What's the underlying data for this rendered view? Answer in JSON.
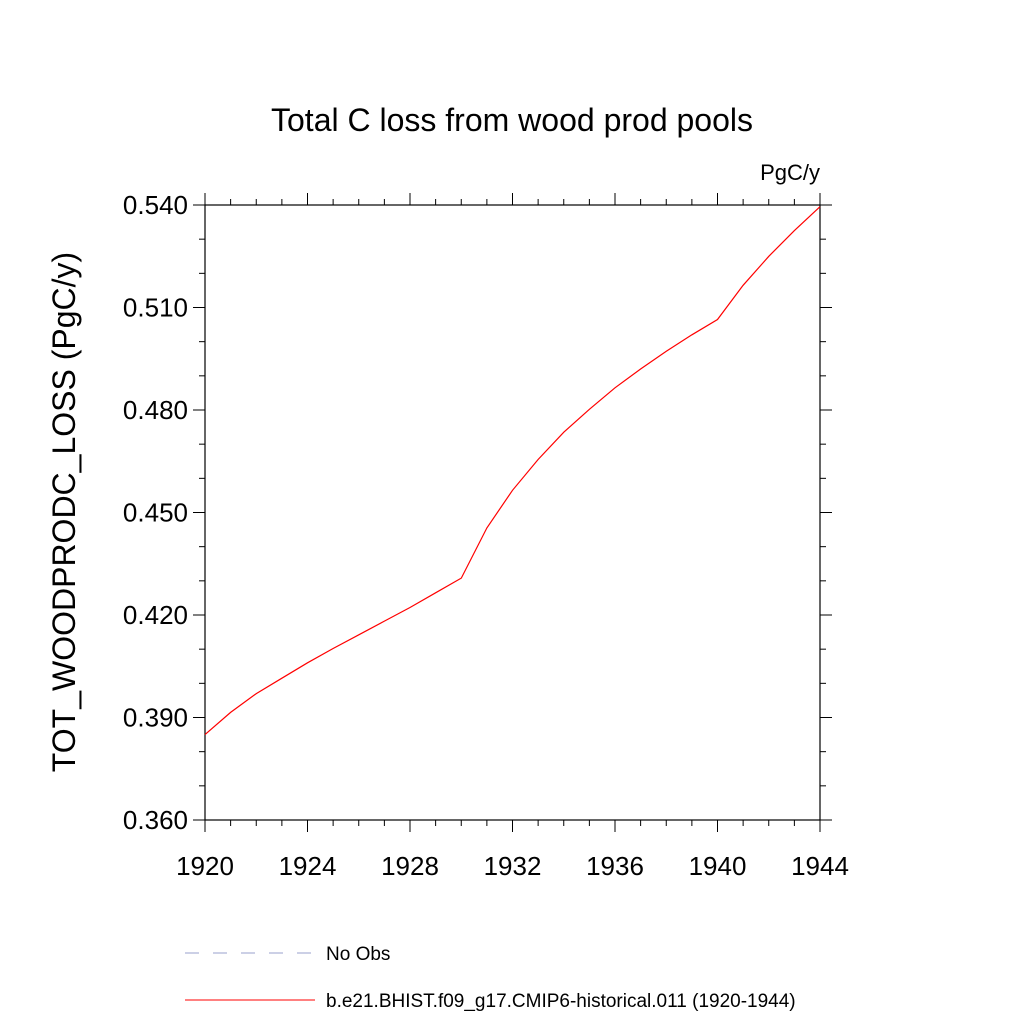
{
  "chart_data": {
    "type": "line",
    "title": "Total C loss from wood prod pools",
    "units_label": "PgC/y",
    "ylabel": "TOT_WOODPRODC_LOSS  (PgC/y)",
    "xlabel": "",
    "xlim": [
      1920,
      1944
    ],
    "ylim": [
      0.36,
      0.54
    ],
    "x_ticks": [
      1920,
      1924,
      1928,
      1932,
      1936,
      1940,
      1944
    ],
    "x_tick_labels": [
      "1920",
      "1924",
      "1928",
      "1932",
      "1936",
      "1940",
      "1944"
    ],
    "y_ticks": [
      0.36,
      0.39,
      0.42,
      0.45,
      0.48,
      0.51,
      0.54
    ],
    "y_tick_labels": [
      "0.360",
      "0.390",
      "0.420",
      "0.450",
      "0.480",
      "0.510",
      "0.540"
    ],
    "grid": false,
    "legend_position": "bottom",
    "series": [
      {
        "name": "b.e21.BHIST.f09_g17.CMIP6-historical.011 (1920-1944)",
        "color": "#ff0000",
        "style": "solid",
        "x": [
          1920,
          1921,
          1922,
          1923,
          1924,
          1925,
          1926,
          1927,
          1928,
          1929,
          1930,
          1931,
          1932,
          1933,
          1934,
          1935,
          1936,
          1937,
          1938,
          1939,
          1940,
          1941,
          1942,
          1943,
          1944
        ],
        "y": [
          0.385,
          0.3915,
          0.397,
          0.4015,
          0.406,
          0.4102,
          0.4142,
          0.4182,
          0.4222,
          0.4265,
          0.4308,
          0.4455,
          0.4565,
          0.4655,
          0.4735,
          0.4802,
          0.4865,
          0.492,
          0.4972,
          0.502,
          0.5065,
          0.5165,
          0.525,
          0.5325,
          0.5395
        ]
      }
    ],
    "legend": [
      {
        "label": "No Obs",
        "color": "#9aa0cc",
        "style": "dashed"
      },
      {
        "label": "b.e21.BHIST.f09_g17.CMIP6-historical.011 (1920-1944)",
        "color": "#ff0000",
        "style": "solid"
      }
    ]
  }
}
